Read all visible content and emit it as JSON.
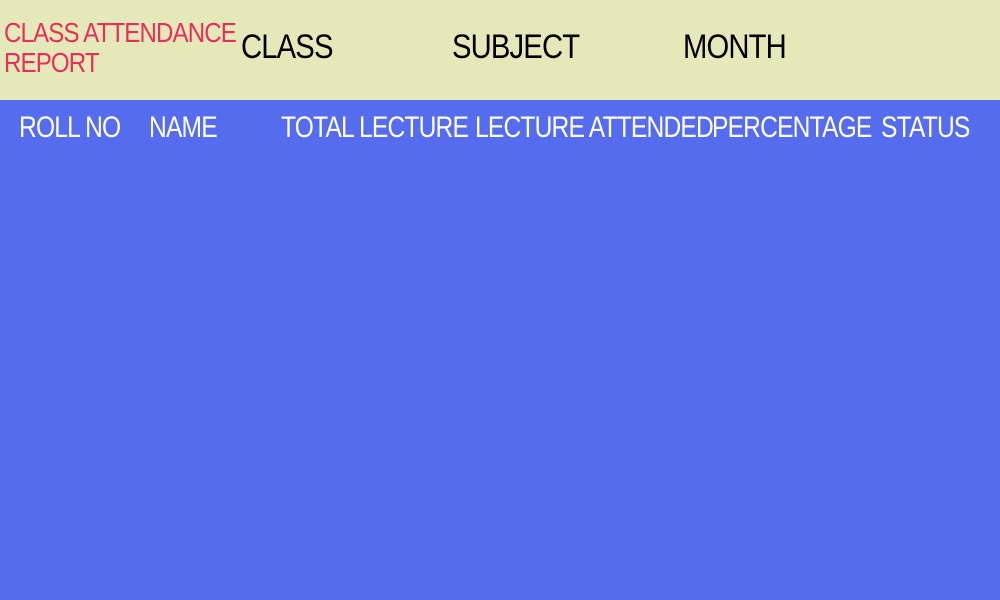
{
  "header": {
    "title_line1": "CLASS ATTENDANCE",
    "title_line2": "REPORT",
    "filters": {
      "class_label": "CLASS",
      "subject_label": "SUBJECT",
      "month_label": "MONTH"
    }
  },
  "table": {
    "columns": [
      "ROLL NO",
      "NAME",
      "TOTAL LECTURE",
      "LECTURE ATTENDED",
      "PERCENTAGE",
      "STATUS"
    ],
    "rows": []
  },
  "colors": {
    "topbar_bg": "#e5e8b8",
    "title_color": "#e82f5c",
    "body_bg": "#556cee",
    "header_text": "#ffffff"
  }
}
